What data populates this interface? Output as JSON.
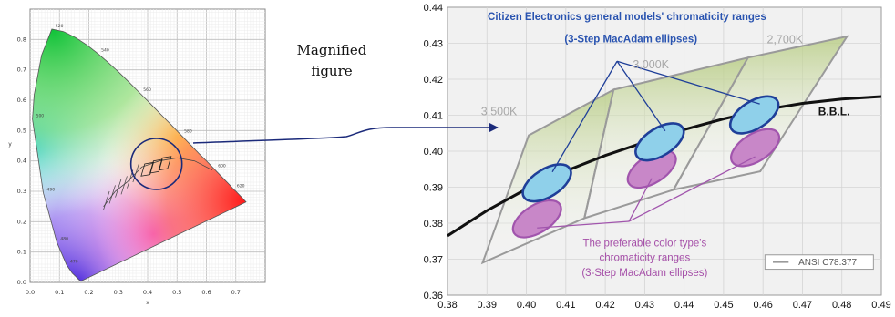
{
  "magnified_label": [
    "Magnified",
    "figure"
  ],
  "left_diagram": {
    "x_ticks": [
      "0.0",
      "0.1",
      "0.2",
      "0.3",
      "0.4",
      "0.5",
      "0.6",
      "0.7"
    ],
    "y_ticks": [
      "0.0",
      "0.1",
      "0.2",
      "0.3",
      "0.4",
      "0.5",
      "0.6",
      "0.7",
      "0.8"
    ],
    "x_axis_label": "x",
    "y_axis_label": "y",
    "wavelength_labels": [
      {
        "text": "520",
        "x": 0.074,
        "y": 0.834
      },
      {
        "text": "540",
        "x": 0.23,
        "y": 0.754
      },
      {
        "text": "560",
        "x": 0.373,
        "y": 0.624
      },
      {
        "text": "580",
        "x": 0.512,
        "y": 0.487
      },
      {
        "text": "600",
        "x": 0.627,
        "y": 0.373
      },
      {
        "text": "620",
        "x": 0.691,
        "y": 0.308
      },
      {
        "text": "500",
        "x": 0.008,
        "y": 0.538
      },
      {
        "text": "490",
        "x": 0.045,
        "y": 0.295
      },
      {
        "text": "480",
        "x": 0.091,
        "y": 0.133
      },
      {
        "text": "470",
        "x": 0.124,
        "y": 0.058
      }
    ],
    "spectral_locus": [
      [
        0.175,
        0.005
      ],
      [
        0.174,
        0.005
      ],
      [
        0.17,
        0.006
      ],
      [
        0.166,
        0.009
      ],
      [
        0.161,
        0.014
      ],
      [
        0.153,
        0.022
      ],
      [
        0.144,
        0.03
      ],
      [
        0.124,
        0.058
      ],
      [
        0.091,
        0.133
      ],
      [
        0.045,
        0.295
      ],
      [
        0.008,
        0.538
      ],
      [
        0.014,
        0.618
      ],
      [
        0.039,
        0.748
      ],
      [
        0.074,
        0.834
      ],
      [
        0.114,
        0.826
      ],
      [
        0.155,
        0.806
      ],
      [
        0.193,
        0.782
      ],
      [
        0.23,
        0.754
      ],
      [
        0.266,
        0.724
      ],
      [
        0.302,
        0.692
      ],
      [
        0.337,
        0.659
      ],
      [
        0.373,
        0.624
      ],
      [
        0.409,
        0.589
      ],
      [
        0.444,
        0.554
      ],
      [
        0.479,
        0.52
      ],
      [
        0.512,
        0.487
      ],
      [
        0.544,
        0.455
      ],
      [
        0.575,
        0.424
      ],
      [
        0.603,
        0.397
      ],
      [
        0.627,
        0.373
      ],
      [
        0.648,
        0.352
      ],
      [
        0.666,
        0.334
      ],
      [
        0.68,
        0.32
      ],
      [
        0.691,
        0.308
      ],
      [
        0.701,
        0.299
      ],
      [
        0.719,
        0.281
      ],
      [
        0.735,
        0.265
      ]
    ]
  },
  "chart_data": {
    "type": "scatter",
    "title": "Citizen Electronics general models' chromaticity ranges (3-Step MacAdam ellipses)",
    "xlim": [
      0.38,
      0.49
    ],
    "ylim": [
      0.36,
      0.44
    ],
    "x_ticks": [
      "0.38",
      "0.39",
      "0.40",
      "0.41",
      "0.42",
      "0.43",
      "0.44",
      "0.45",
      "0.46",
      "0.47",
      "0.48",
      "0.49"
    ],
    "y_ticks": [
      "0.36",
      "0.37",
      "0.38",
      "0.39",
      "0.40",
      "0.41",
      "0.42",
      "0.43",
      "0.44"
    ],
    "bbl": {
      "label": "B.B.L.",
      "points": [
        [
          0.38,
          0.3765
        ],
        [
          0.39,
          0.3835
        ],
        [
          0.4,
          0.3895
        ],
        [
          0.41,
          0.3945
        ],
        [
          0.42,
          0.3988
        ],
        [
          0.43,
          0.4025
        ],
        [
          0.44,
          0.406
        ],
        [
          0.45,
          0.409
        ],
        [
          0.46,
          0.4115
        ],
        [
          0.47,
          0.4133
        ],
        [
          0.48,
          0.4145
        ],
        [
          0.49,
          0.4152
        ]
      ]
    },
    "ansi_quadrangles": [
      {
        "label": "3,500K",
        "corners": [
          [
            0.3889,
            0.369
          ],
          [
            0.4006,
            0.4044
          ],
          [
            0.4221,
            0.4171
          ],
          [
            0.4147,
            0.3814
          ]
        ]
      },
      {
        "label": "3,000K",
        "corners": [
          [
            0.4147,
            0.3814
          ],
          [
            0.4221,
            0.4171
          ],
          [
            0.4562,
            0.426
          ],
          [
            0.4373,
            0.3893
          ]
        ]
      },
      {
        "label": "2,700K",
        "corners": [
          [
            0.4373,
            0.3893
          ],
          [
            0.4562,
            0.426
          ],
          [
            0.4813,
            0.4319
          ],
          [
            0.4593,
            0.3944
          ]
        ]
      }
    ],
    "general_model_ellipses": [
      {
        "center": [
          0.4052,
          0.3912
        ],
        "a": 0.0035,
        "b": 0.0075,
        "angle": 58
      },
      {
        "center": [
          0.4338,
          0.4026
        ],
        "a": 0.0035,
        "b": 0.0075,
        "angle": 58
      },
      {
        "center": [
          0.4578,
          0.4101
        ],
        "a": 0.0035,
        "b": 0.0075,
        "angle": 58
      }
    ],
    "preferable_ellipses": [
      {
        "center": [
          0.4027,
          0.3812
        ],
        "a": 0.0035,
        "b": 0.0075,
        "angle": 58
      },
      {
        "center": [
          0.4318,
          0.395
        ],
        "a": 0.0035,
        "b": 0.0075,
        "angle": 58
      },
      {
        "center": [
          0.458,
          0.401
        ],
        "a": 0.0035,
        "b": 0.0075,
        "angle": 58
      }
    ],
    "annotations": {
      "general_label": [
        "Citizen Electronics general models' chromaticity ranges",
        "(3-Step MacAdam ellipses)"
      ],
      "general_anchor": [
        0.423,
        0.425
      ],
      "preferable_label": [
        "The preferable color type's",
        "chromaticity ranges",
        "(3-Step MacAdam ellipses)"
      ],
      "preferable_anchor": [
        0.426,
        0.3805
      ]
    },
    "legend": {
      "label": "ANSI C78.377",
      "position": "bottom-right"
    }
  },
  "colors": {
    "blue_outline": "#1f3f99",
    "blue_fill": "#8fd0ea",
    "purple_outline": "#a155ad",
    "purple_fill": "#c887c8",
    "quad_fill": "#cbd9a4",
    "quad_stroke": "#9a9a9a",
    "bbl": "#111111",
    "plot_bg": "#f1f1f1",
    "grid": "#d4d4d4",
    "blue_text": "#2a54b0",
    "purple_text": "#a54fa8",
    "gray_text": "#a8a8a8",
    "arrow": "#1b2a7a"
  }
}
